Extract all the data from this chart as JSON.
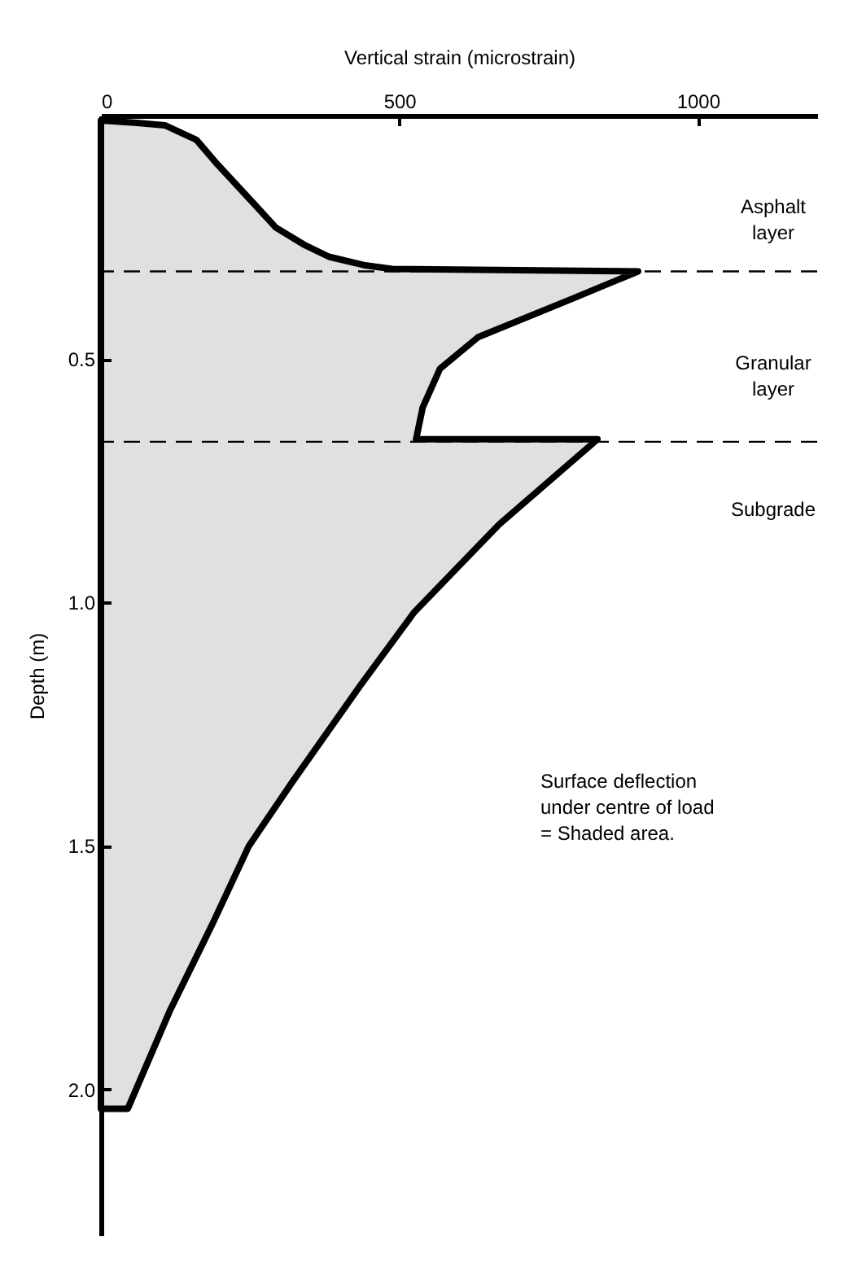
{
  "chart_data": {
    "type": "area",
    "orientation": "horizontal",
    "xlabel": "Vertical strain (microstrain)",
    "ylabel": "Depth (m)",
    "x": [
      0.01,
      0.015,
      0.02,
      0.05,
      0.1,
      0.17,
      0.23,
      0.265,
      0.29,
      0.307,
      0.315,
      0.32,
      0.375,
      0.455,
      0.52,
      0.6,
      0.665,
      0.665,
      0.84,
      1.02,
      1.17,
      1.37,
      1.5,
      1.66,
      1.84,
      2.04
    ],
    "series": [
      {
        "color": "#000000",
        "values": [
          0,
          60,
          107,
          160,
          195,
          248,
          293,
          340,
          382,
          440,
          488,
          900,
          792,
          632,
          568,
          539,
          528,
          832,
          667,
          525,
          435,
          320,
          248,
          187,
          115,
          45
        ]
      }
    ],
    "xlim": [
      0,
      1200
    ],
    "xticks": [
      0,
      500,
      1000
    ],
    "ylim": [
      2.3,
      0
    ],
    "yticks": [
      0.5,
      {
        "value": 1,
        "label": "1.0"
      },
      1.5,
      {
        "value": 2,
        "label": "2.0"
      }
    ],
    "ref_lines": [
      {
        "axis": "y",
        "value": 0.32,
        "color": "#000000",
        "line_style": "dashed"
      },
      {
        "axis": "y",
        "value": 0.67,
        "color": "#000000",
        "line_style": "dashed"
      }
    ],
    "annotations": [
      "Asphalt\nlayer",
      "Granular\nlayer",
      "Subgrade",
      "Surface deflection\nunder centre of load\n=  Shaded area."
    ],
    "grid": false
  }
}
